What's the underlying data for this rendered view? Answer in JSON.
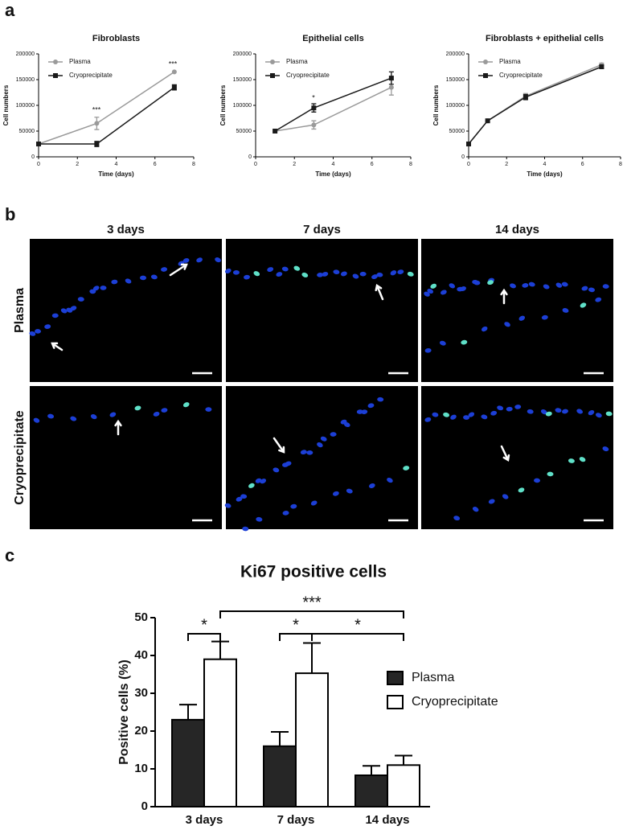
{
  "panels": {
    "a": {
      "label": "a"
    },
    "b": {
      "label": "b",
      "columns": [
        "3 days",
        "7 days",
        "14 days"
      ],
      "rows": [
        "Plasma",
        "Cryoprecipitate"
      ]
    },
    "c": {
      "label": "c"
    }
  },
  "chart_data": [
    {
      "type": "line",
      "title": "Fibroblasts",
      "x_label": "Time (days)",
      "y_label": "Cell numbers",
      "xlim": [
        0,
        8
      ],
      "xticks": [
        0,
        2,
        4,
        6,
        8
      ],
      "ylim": [
        0,
        200000
      ],
      "yticks": [
        0,
        50000,
        100000,
        150000,
        200000
      ],
      "series": [
        {
          "name": "Plasma",
          "color": "#9a9a9a",
          "marker": "circle",
          "x": [
            0,
            3,
            7
          ],
          "values": [
            25000,
            65000,
            165000
          ],
          "errors": [
            null,
            12000,
            null
          ]
        },
        {
          "name": "Cryoprecipitate",
          "color": "#1a1a1a",
          "marker": "square",
          "x": [
            0,
            3,
            7
          ],
          "values": [
            25000,
            25000,
            135000
          ],
          "errors": [
            null,
            5000,
            5000
          ]
        }
      ],
      "annotations": [
        "***",
        "***"
      ]
    },
    {
      "type": "line",
      "title": "Epithelial cells",
      "x_label": "Time (days)",
      "y_label": "Cell numbers",
      "xlim": [
        0,
        8
      ],
      "xticks": [
        0,
        2,
        4,
        6,
        8
      ],
      "ylim": [
        0,
        200000
      ],
      "yticks": [
        0,
        50000,
        100000,
        150000,
        200000
      ],
      "series": [
        {
          "name": "Plasma",
          "color": "#9a9a9a",
          "marker": "circle",
          "x": [
            1,
            3,
            7
          ],
          "values": [
            50000,
            62000,
            135000
          ],
          "errors": [
            null,
            8000,
            15000
          ]
        },
        {
          "name": "Cryoprecipitate",
          "color": "#1a1a1a",
          "marker": "square",
          "x": [
            1,
            3,
            7
          ],
          "values": [
            50000,
            95000,
            153000
          ],
          "errors": [
            null,
            8000,
            12000
          ]
        }
      ],
      "annotations": [
        "*"
      ]
    },
    {
      "type": "line",
      "title": "Fibroblasts + epithelial cells",
      "x_label": "Time (days)",
      "y_label": "Cell numbers",
      "xlim": [
        0,
        8
      ],
      "xticks": [
        0,
        2,
        4,
        6,
        8
      ],
      "ylim": [
        0,
        200000
      ],
      "yticks": [
        0,
        50000,
        100000,
        150000,
        200000
      ],
      "series": [
        {
          "name": "Plasma",
          "color": "#9a9a9a",
          "marker": "circle",
          "x": [
            0,
            1,
            3,
            7
          ],
          "values": [
            25000,
            70000,
            118000,
            179000
          ],
          "errors": [
            null,
            null,
            5000,
            3000
          ]
        },
        {
          "name": "Cryoprecipitate",
          "color": "#1a1a1a",
          "marker": "square",
          "x": [
            0,
            1,
            3,
            7
          ],
          "values": [
            25000,
            70000,
            116000,
            175000
          ],
          "errors": [
            null,
            null,
            5000,
            3000
          ]
        }
      ],
      "annotations": []
    },
    {
      "type": "bar",
      "title": "Ki67 positive cells",
      "y_label": "Positive cells (%)",
      "categories": [
        "3 days",
        "7 days",
        "14 days"
      ],
      "ylim": [
        0,
        50
      ],
      "yticks": [
        0,
        10,
        20,
        30,
        40,
        50
      ],
      "series": [
        {
          "name": "Plasma",
          "color": "#262626",
          "values": [
            23,
            16,
            8.3
          ],
          "errors": [
            4,
            3.8,
            2.5
          ]
        },
        {
          "name": "Cryoprecipitate",
          "color": "#ffffff",
          "values": [
            39,
            35.3,
            11
          ],
          "errors": [
            4.7,
            8,
            2.5
          ]
        }
      ],
      "annotations": [
        "*",
        "***",
        "*",
        "*"
      ]
    }
  ]
}
